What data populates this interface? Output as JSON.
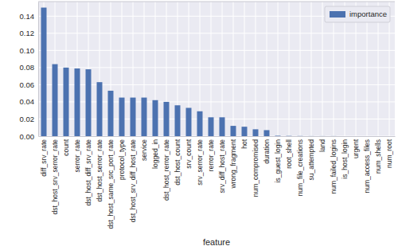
{
  "chart_data": {
    "type": "bar",
    "x_label": "feature",
    "categories": [
      "diff_srv_rate",
      "dst_host_srv_serror_rate",
      "count",
      "serror_rate",
      "dst_host_diff_srv_rate",
      "dst_host_serror_rate",
      "dst_host_same_src_port_rate",
      "protocol_type",
      "dst_host_srv_diff_host_rate",
      "service",
      "logged_in",
      "dst_host_rerror_rate",
      "dst_host_count",
      "srv_count",
      "srv_serror_rate",
      "rerror_rate",
      "srv_diff_host_rate",
      "wrong_fragment",
      "hot",
      "num_compromised",
      "duration",
      "is_guest_login",
      "root_shell",
      "num_file_creations",
      "su_attempted",
      "land",
      "num_failed_logins",
      "is_host_login",
      "urgent",
      "num_access_files",
      "num_shells",
      "num_root"
    ],
    "series": [
      {
        "name": "importance",
        "color": "#4c72b0",
        "values": [
          0.15,
          0.084,
          0.08,
          0.079,
          0.078,
          0.063,
          0.053,
          0.045,
          0.045,
          0.045,
          0.042,
          0.04,
          0.036,
          0.033,
          0.029,
          0.022,
          0.022,
          0.012,
          0.011,
          0.008,
          0.007,
          0.0005,
          0.0003,
          0.0002,
          0.0001,
          0.0001,
          0.0001,
          0,
          0,
          0,
          0,
          0
        ]
      }
    ],
    "ylim": [
      0,
      0.157
    ],
    "yticks": [
      {
        "value": 0,
        "label": "0.00"
      },
      {
        "value": 0.02,
        "label": "0.02"
      },
      {
        "value": 0.04,
        "label": "0.04"
      },
      {
        "value": 0.06,
        "label": "0.06"
      },
      {
        "value": 0.08,
        "label": "0.08"
      },
      {
        "value": 0.1,
        "label": "0.10"
      },
      {
        "value": 0.12,
        "label": "0.12"
      },
      {
        "value": 0.14,
        "label": "0.14"
      }
    ],
    "grid": true,
    "legend": "upper right"
  }
}
